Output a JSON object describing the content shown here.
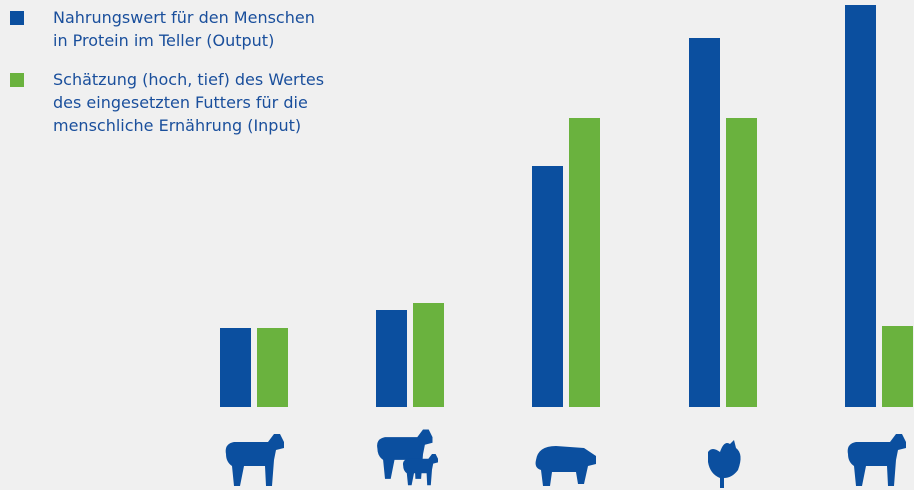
{
  "chart_data": {
    "type": "bar",
    "categories": [
      null,
      null,
      null,
      null,
      null
    ],
    "series": [
      {
        "name": "Nahrungswert für den Menschen in Protein im Teller (Output)",
        "color": "#0b4f9f",
        "values": [
          79,
          97,
          241,
          369,
          402
        ]
      },
      {
        "name": "Schätzung (hoch, tief) des Wertes des eingesetzten Futters für die menschliche Ernährung (Input)",
        "color": "#6ab23e",
        "values": [
          79,
          104,
          289,
          289,
          81
        ]
      }
    ]
  }
}
